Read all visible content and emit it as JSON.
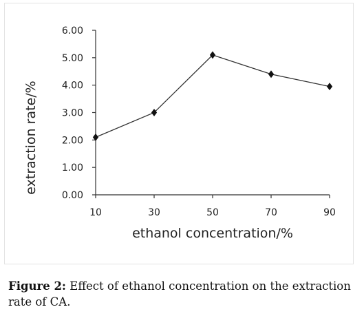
{
  "chart_data": {
    "type": "line",
    "x": [
      10,
      30,
      50,
      70,
      90
    ],
    "x_tick_labels": [
      "10",
      "30",
      "50",
      "70",
      "90"
    ],
    "series": [
      {
        "values": [
          2.1,
          3.0,
          5.1,
          4.4,
          3.95
        ]
      }
    ],
    "ylim": [
      0,
      6
    ],
    "y_tick_labels": [
      "0.00",
      "1.00",
      "2.00",
      "3.00",
      "4.00",
      "5.00",
      "6.00"
    ],
    "xlabel": "ethanol concentration/%",
    "ylabel": "extraction rate/%",
    "grid": false,
    "marker": "diamond",
    "line_color": "#333333"
  },
  "caption": {
    "label": "Figure 2:",
    "text": " Effect of ethanol concentration on the extraction rate of CA."
  }
}
